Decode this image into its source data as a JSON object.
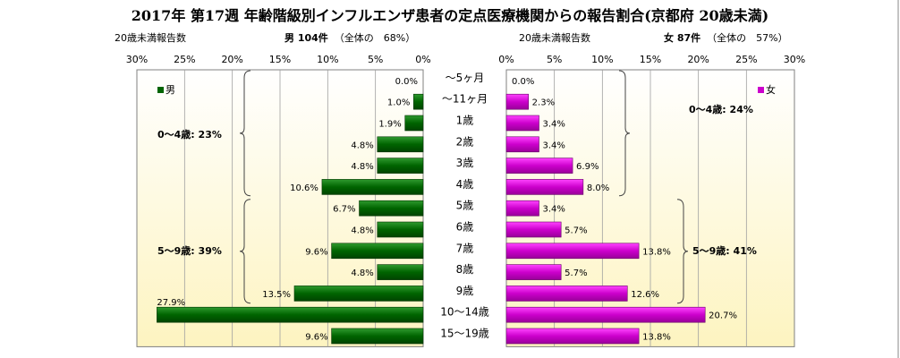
{
  "title": "2017年 第17週 年齢階級別インフルエンザ患者の定点医療機関からの報告割合(京都府 20歳未満)",
  "male_header": {
    "left_label": "20歳未満報告数",
    "sex_count": "男 104件",
    "total_share": "（全体の　68%）"
  },
  "female_header": {
    "left_label": "20歳未満報告数",
    "sex_count": "女 87件",
    "total_share": "（全体の　57%）"
  },
  "male_group_labels": [
    "0～4歳: 23%",
    "5～9歳: 39%"
  ],
  "female_group_labels": [
    "0～4歳: 24%",
    "5～9歳: 41%"
  ],
  "chart_data": {
    "type": "bar",
    "title": "2017年 第17週 年齢階級別インフルエンザ患者の定点医療機関からの報告割合(京都府 20歳未満)",
    "categories": [
      "～5ヶ月",
      "～11ヶ月",
      "1歳",
      "2歳",
      "3歳",
      "4歳",
      "5歳",
      "6歳",
      "7歳",
      "8歳",
      "9歳",
      "10～14歳",
      "15～19歳"
    ],
    "xlim": [
      0,
      30
    ],
    "x_ticks": [
      "0%",
      "5%",
      "10%",
      "15%",
      "20%",
      "25%",
      "30%"
    ],
    "legend_placement": "top-left (男), top-right (女)",
    "series": [
      {
        "name": "男",
        "color": "#006400",
        "values": [
          0.0,
          1.0,
          1.9,
          4.8,
          4.8,
          10.6,
          6.7,
          4.8,
          9.6,
          4.8,
          13.5,
          27.9,
          9.6
        ],
        "labels": [
          "0.0%",
          "1.0%",
          "1.9%",
          "4.8%",
          "4.8%",
          "10.6%",
          "6.7%",
          "4.8%",
          "9.6%",
          "4.8%",
          "13.5%",
          "27.9%",
          "9.6%"
        ]
      },
      {
        "name": "女",
        "color": "#cc00cc",
        "values": [
          0.0,
          2.3,
          3.4,
          3.4,
          6.9,
          8.0,
          3.4,
          5.7,
          13.8,
          5.7,
          12.6,
          20.7,
          13.8
        ],
        "labels": [
          "0.0%",
          "2.3%",
          "3.4%",
          "3.4%",
          "6.9%",
          "8.0%",
          "3.4%",
          "5.7%",
          "13.8%",
          "5.7%",
          "12.6%",
          "20.7%",
          "13.8%"
        ]
      }
    ]
  }
}
